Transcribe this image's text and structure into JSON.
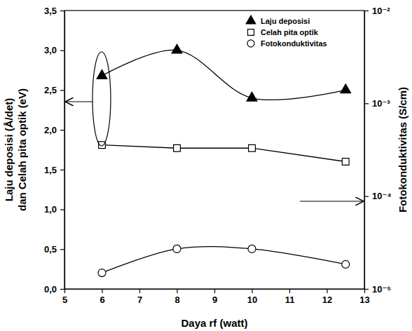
{
  "chart_data": {
    "type": "line",
    "xlabel": "Daya rf (watt)",
    "ylabel": [
      "Laju deposisi (Å/det)",
      "dan Celah pita optik (eV)"
    ],
    "y2label": "Fotokonduktivitas (S/cm)",
    "x": [
      6,
      8,
      10,
      12.5
    ],
    "series": [
      {
        "name": "Laju deposisi",
        "color": "#000000",
        "marker": "triangle",
        "line_style": "smooth",
        "values": [
          2.68,
          3.0,
          2.4,
          2.5
        ]
      },
      {
        "name": "Celah pita optik",
        "color": "#000000",
        "marker": "square-open",
        "line_style": "solid",
        "values": [
          1.81,
          1.77,
          1.77,
          1.6
        ]
      },
      {
        "name": "Fotokonduktivitas",
        "color": "#000000",
        "marker": "circle-open",
        "line_style": "smooth",
        "axis": "y2",
        "values": [
          1.49e-05,
          2.7e-05,
          2.7e-05,
          1.84e-05
        ]
      }
    ],
    "xlim": [
      5,
      13
    ],
    "xticks": [
      5,
      6,
      7,
      8,
      9,
      10,
      11,
      12,
      13
    ],
    "ylim": [
      0,
      3.5
    ],
    "yticks": [
      {
        "value": 0,
        "label": "0,0"
      },
      {
        "value": 0.5,
        "label": "0,5"
      },
      {
        "value": 1,
        "label": "1,0"
      },
      {
        "value": 1.5,
        "label": "1,5"
      },
      {
        "value": 2,
        "label": "2,0"
      },
      {
        "value": 2.5,
        "label": "2,5"
      },
      {
        "value": 3,
        "label": "3,0"
      },
      {
        "value": 3.5,
        "label": "3,5"
      }
    ],
    "y2lim": [
      1e-05,
      0.01
    ],
    "y2ticks": [
      {
        "value": 1e-05,
        "label": "10⁻⁵"
      },
      {
        "value": 0.0001,
        "label": "10⁻⁴"
      },
      {
        "value": 0.001,
        "label": "10⁻³"
      },
      {
        "value": 0.01,
        "label": "10⁻²"
      }
    ],
    "log": "y2",
    "grid": false,
    "legend": "upper right"
  }
}
